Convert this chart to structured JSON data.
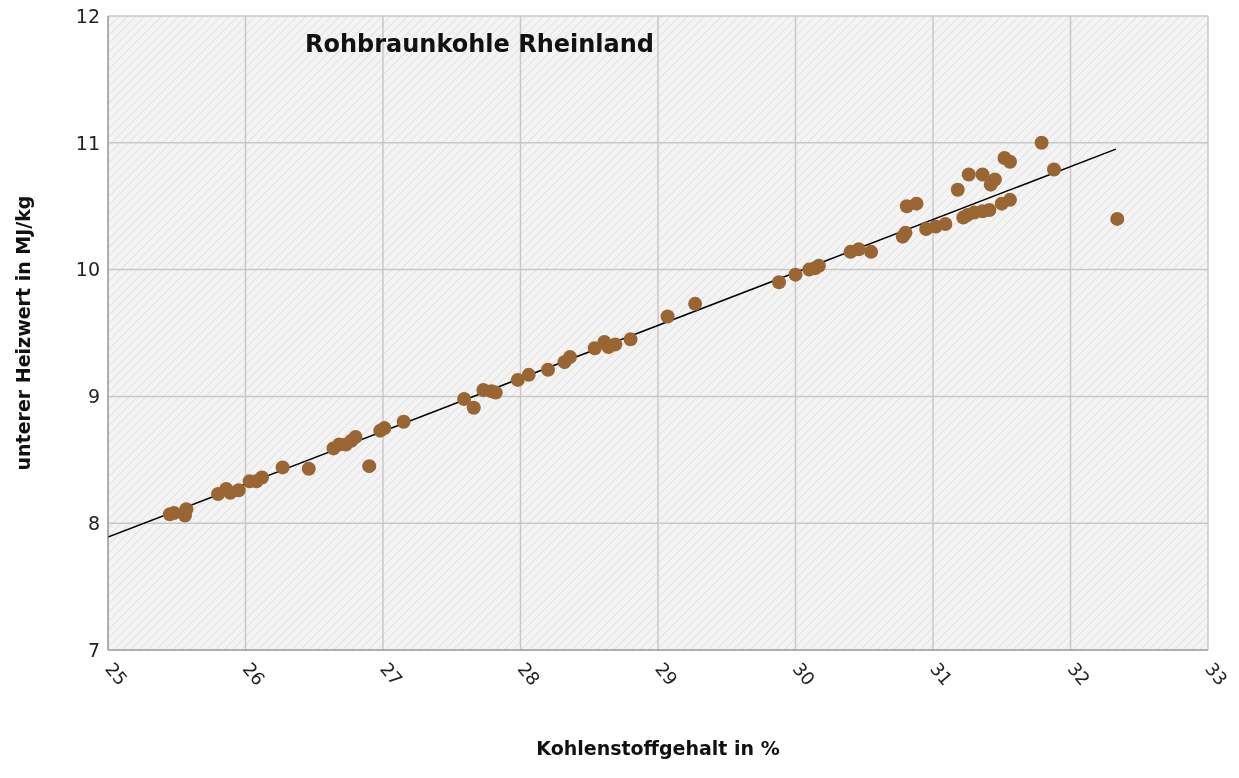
{
  "chart_data": {
    "type": "scatter",
    "title": "Rohbraunkohle Rheinland",
    "xlabel": "Kohlenstoffgehalt in %",
    "ylabel": "unterer Heizwert in MJ/kg",
    "xlim": [
      25,
      33
    ],
    "xticks": [
      25,
      26,
      27,
      28,
      29,
      30,
      31,
      32,
      33
    ],
    "ylim": [
      7,
      12
    ],
    "yticks": [
      7,
      8,
      9,
      10,
      11,
      12
    ],
    "grid": true,
    "legend": false,
    "series": [
      {
        "marker": "circle",
        "color": "#996633",
        "x": [
          25.45,
          25.48,
          25.56,
          25.57,
          25.8,
          25.86,
          25.89,
          25.95,
          26.03,
          26.08,
          26.12,
          26.27,
          26.46,
          26.64,
          26.68,
          26.73,
          26.77,
          26.8,
          26.9,
          26.98,
          27.01,
          27.15,
          27.59,
          27.66,
          27.73,
          27.79,
          27.82,
          27.98,
          28.06,
          28.2,
          28.32,
          28.36,
          28.54,
          28.61,
          28.64,
          28.69,
          28.8,
          29.07,
          29.27,
          29.88,
          30,
          30.1,
          30.14,
          30.17,
          30.4,
          30.46,
          30.55,
          30.78,
          30.8,
          30.81,
          30.88,
          30.95,
          31.02,
          31.09,
          31.18,
          31.22,
          31.25,
          31.26,
          31.3,
          31.36,
          31.36,
          31.41,
          31.42,
          31.45,
          31.5,
          31.52,
          31.56,
          31.56,
          31.79,
          31.88,
          32.34
        ],
        "values": [
          8.07,
          8.08,
          8.06,
          8.11,
          8.23,
          8.27,
          8.24,
          8.26,
          8.33,
          8.33,
          8.36,
          8.44,
          8.43,
          8.59,
          8.62,
          8.62,
          8.65,
          8.68,
          8.45,
          8.73,
          8.75,
          8.8,
          8.98,
          8.91,
          9.05,
          9.04,
          9.03,
          9.13,
          9.17,
          9.21,
          9.27,
          9.31,
          9.38,
          9.43,
          9.39,
          9.41,
          9.45,
          9.63,
          9.73,
          9.9,
          9.96,
          10,
          10.01,
          10.03,
          10.14,
          10.16,
          10.14,
          10.26,
          10.29,
          10.5,
          10.52,
          10.32,
          10.34,
          10.36,
          10.63,
          10.41,
          10.43,
          10.75,
          10.45,
          10.75,
          10.46,
          10.47,
          10.67,
          10.71,
          10.52,
          10.88,
          10.55,
          10.85,
          11,
          10.79,
          10.4
        ]
      },
      {
        "type": "line",
        "marker": "none",
        "color": "#000000",
        "x": [
          25,
          32.33
        ],
        "values": [
          7.89,
          10.95
        ]
      }
    ]
  }
}
